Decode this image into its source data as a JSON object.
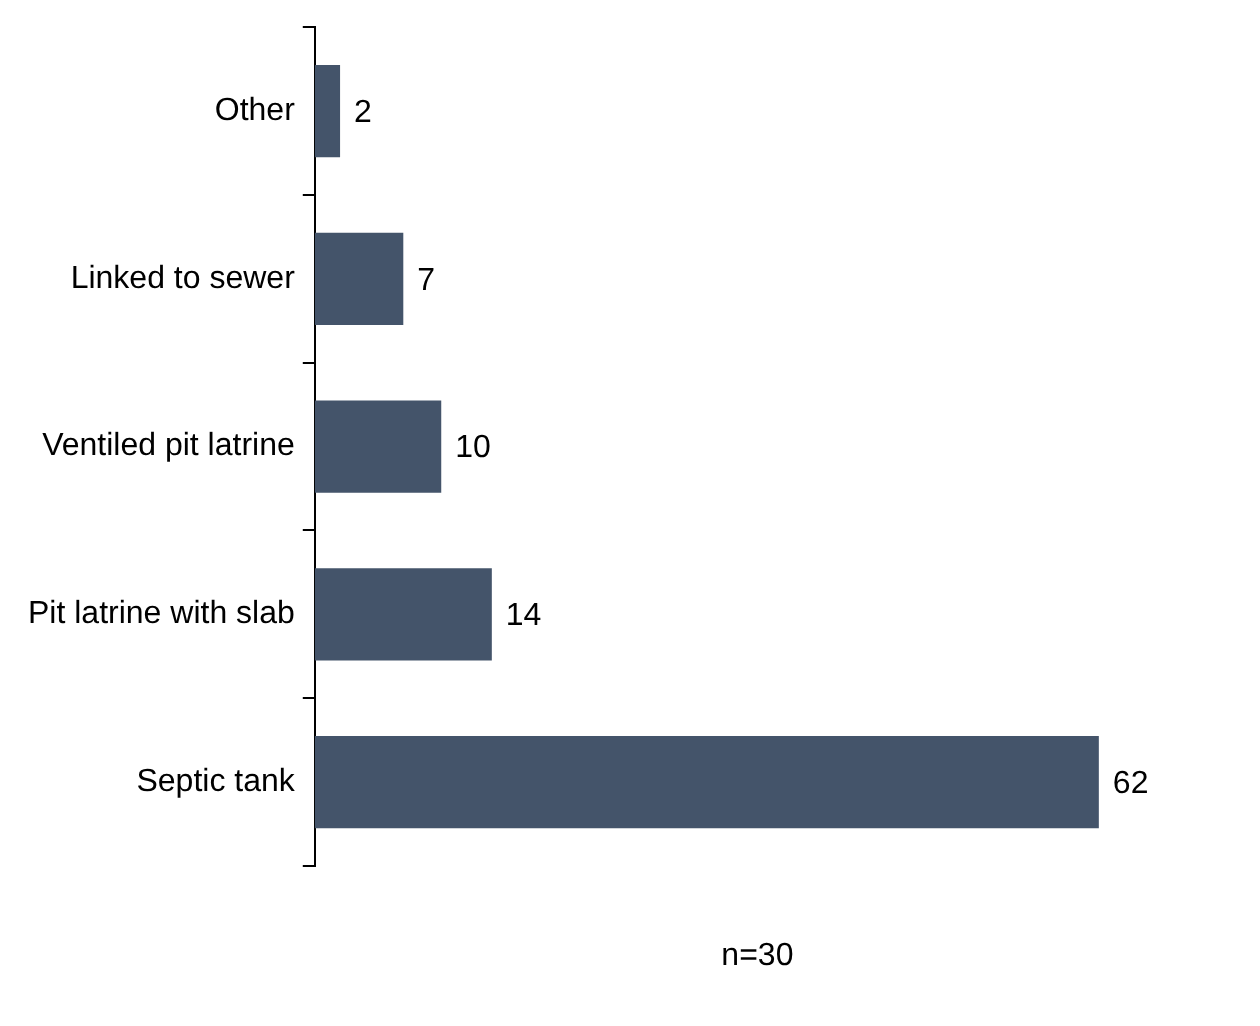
{
  "chart_data": {
    "type": "bar",
    "orientation": "horizontal",
    "categories": [
      "Other",
      "Linked to sewer",
      "Ventiled pit latrine",
      "Pit latrine with slab",
      "Septic tank"
    ],
    "values": [
      2,
      7,
      10,
      14,
      62
    ],
    "color": "#44546a",
    "data_labels": true,
    "annotations": [
      "n=30"
    ]
  }
}
